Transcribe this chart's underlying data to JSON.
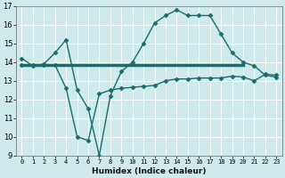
{
  "xlabel": "Humidex (Indice chaleur)",
  "ylabel": "",
  "xlim": [
    -0.5,
    23.5
  ],
  "ylim": [
    9,
    17
  ],
  "yticks": [
    9,
    10,
    11,
    12,
    13,
    14,
    15,
    16,
    17
  ],
  "xticks": [
    0,
    1,
    2,
    3,
    4,
    5,
    6,
    7,
    8,
    9,
    10,
    11,
    12,
    13,
    14,
    15,
    16,
    17,
    18,
    19,
    20,
    21,
    22,
    23
  ],
  "background_color": "#ceeaea",
  "grid_color": "#ffffff",
  "line_color": "#1a6b6b",
  "line_width": 1.0,
  "marker": "D",
  "marker_size": 2.5,
  "curve1_x": [
    0,
    1,
    2,
    3,
    4,
    5,
    6,
    7,
    8,
    9,
    10,
    11,
    12,
    13,
    14,
    15,
    16,
    17,
    18,
    19,
    20,
    21,
    22,
    23
  ],
  "curve1_y": [
    14.2,
    13.8,
    13.9,
    14.5,
    15.2,
    12.5,
    11.5,
    9.0,
    12.2,
    13.5,
    14.0,
    15.0,
    16.1,
    16.5,
    16.8,
    16.5,
    16.5,
    16.5,
    15.5,
    14.5,
    14.0,
    13.8,
    13.3,
    13.2
  ],
  "curve2_x": [
    0,
    20
  ],
  "curve2_y": [
    13.85,
    13.85
  ],
  "curve3_x": [
    0,
    1,
    2,
    3,
    4,
    5,
    6,
    7,
    8,
    9,
    10,
    11,
    12,
    13,
    14,
    15,
    16,
    17,
    18,
    19,
    20,
    21,
    22,
    23
  ],
  "curve3_y": [
    13.85,
    13.85,
    13.85,
    13.85,
    12.6,
    10.0,
    9.8,
    12.3,
    12.5,
    12.6,
    12.65,
    12.7,
    12.75,
    13.0,
    13.1,
    13.1,
    13.15,
    13.15,
    13.15,
    13.25,
    13.2,
    13.0,
    13.35,
    13.3
  ]
}
